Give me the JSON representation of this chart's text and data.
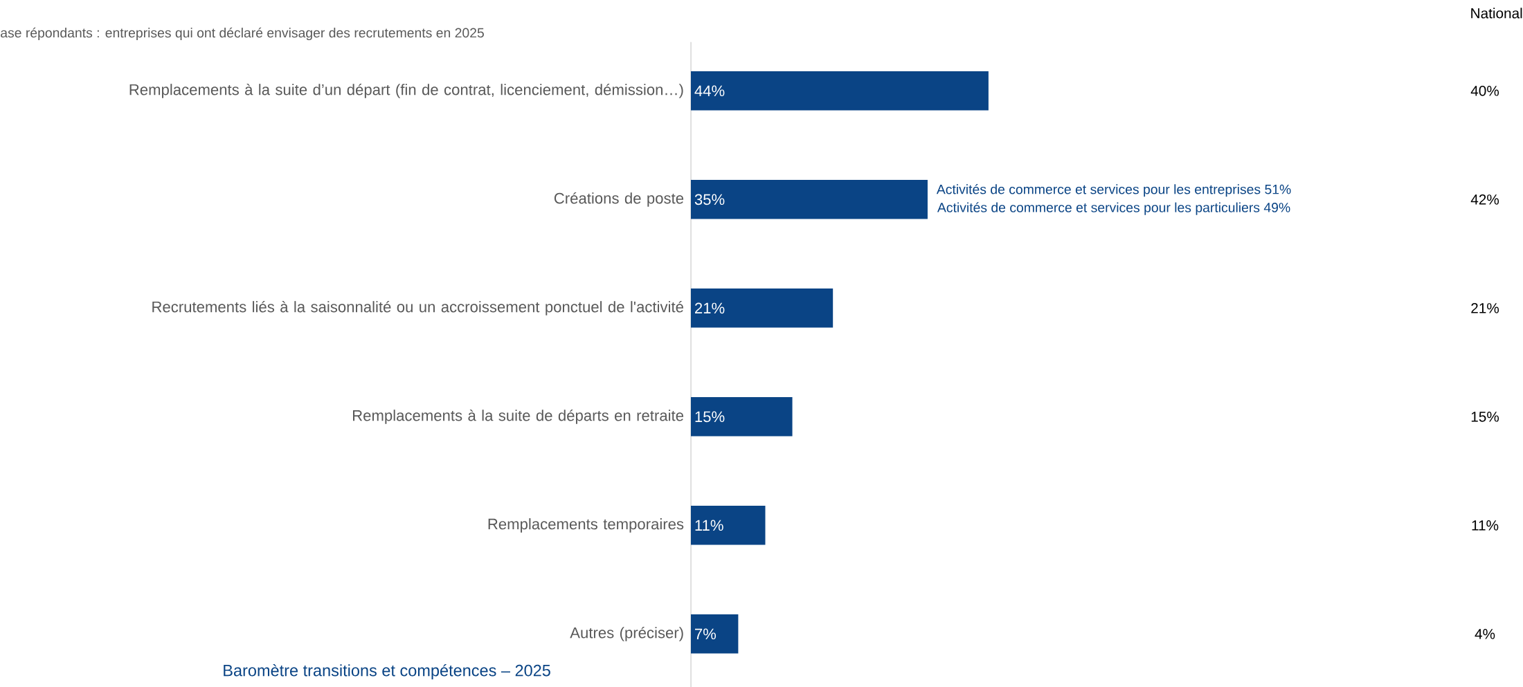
{
  "chart_data": {
    "type": "bar",
    "orientation": "horizontal",
    "subtitle": "ase répondants : entreprises qui ont déclaré envisager des recrutements en 2025",
    "categories": [
      "Remplacements à la suite d’un départ (fin de contrat, licenciement, démission…)",
      "Créations de poste",
      "Recrutements liés à la saisonnalité ou un accroissement ponctuel de l'activité",
      "Remplacements à la suite de départs en retraite",
      "Remplacements temporaires",
      "Autres (préciser)"
    ],
    "values": [
      44,
      35,
      21,
      15,
      11,
      7
    ],
    "value_labels": [
      "44%",
      "35%",
      "21%",
      "15%",
      "11%",
      "7%"
    ],
    "color": "#0a4485",
    "annotations": [
      {
        "text": "Activités de commerce et services pour les entreprises 51%",
        "x": 35,
        "y": "Créations de poste"
      },
      {
        "text": "Activités de commerce et services pour les particuliers 49%",
        "x": 35,
        "y": "Créations de poste"
      },
      "National",
      "40%",
      "42%",
      "21%",
      "15%",
      "11%",
      "4%",
      "Baromètre transitions et compétences – 2025"
    ]
  }
}
